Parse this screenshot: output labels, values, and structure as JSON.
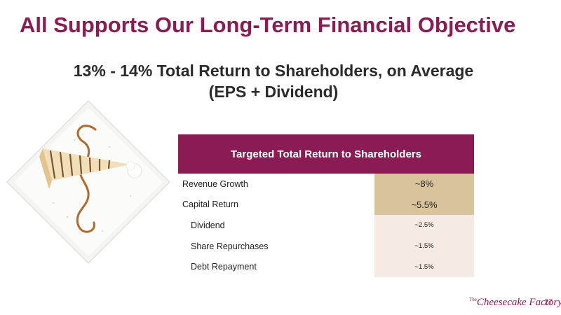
{
  "slide": {
    "title": "All Supports Our Long-Term Financial Objective",
    "subtitle_line1": "13% - 14% Total Return to Shareholders, on Average",
    "subtitle_line2": "(EPS + Dividend)"
  },
  "table": {
    "header": "Targeted Total Return to Shareholders",
    "rows": [
      {
        "label": "Revenue Growth",
        "value": "~8%"
      },
      {
        "label": "Capital Return",
        "value": "~5.5%"
      },
      {
        "label": "Dividend",
        "value": "~2.5%"
      },
      {
        "label": "Share Repurchases",
        "value": "~1.5%"
      },
      {
        "label": "Debt Repayment",
        "value": "~1.5%"
      }
    ]
  },
  "footer": {
    "logo_text": "Cheesecake Factory",
    "logo_small": "The",
    "page_number": "27"
  },
  "colors": {
    "brand": "#8a1c53",
    "tan": "#d9c39b",
    "light": "#f6ebe3"
  }
}
